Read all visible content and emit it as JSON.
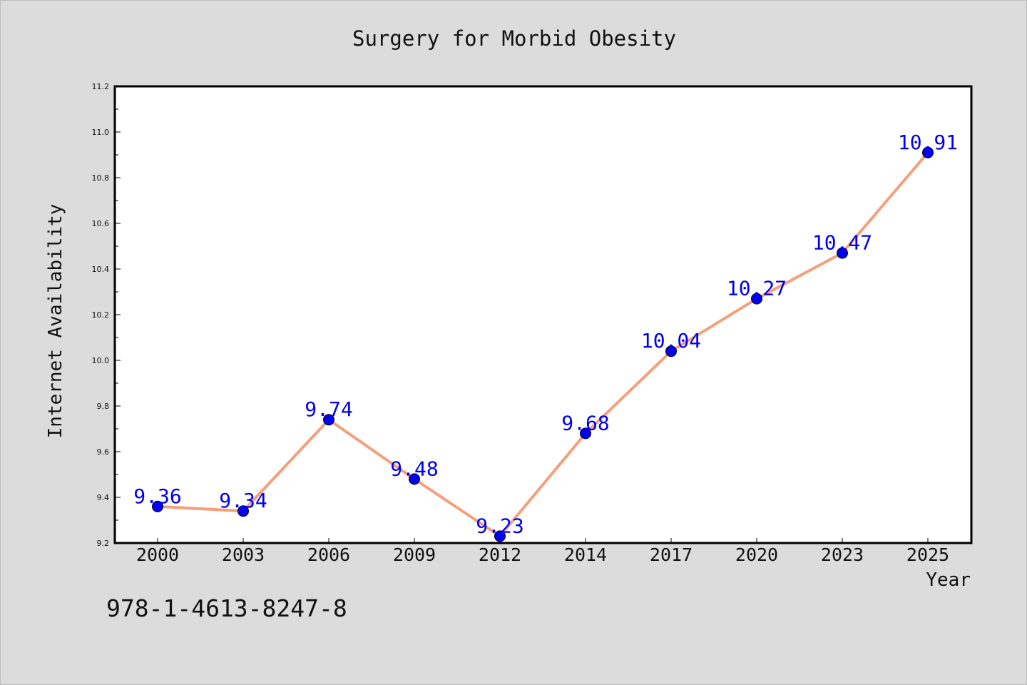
{
  "chart_data": {
    "type": "line",
    "title": "Surgery for Morbid Obesity",
    "xlabel": "Year",
    "ylabel": "Internet Availability",
    "categories": [
      "2000",
      "2003",
      "2006",
      "2009",
      "2012",
      "2014",
      "2017",
      "2020",
      "2023",
      "2025"
    ],
    "series": [
      {
        "values": [
          9.36,
          9.34,
          9.74,
          9.48,
          9.23,
          9.68,
          10.04,
          10.27,
          10.47,
          10.91
        ],
        "line_color": "#f4a07c",
        "marker_color": "#0000ee"
      }
    ],
    "data_labels": [
      "9.36",
      "9.34",
      "9.74",
      "9.48",
      "9.23",
      "9.68",
      "10.04",
      "10.27",
      "10.47",
      "10.91"
    ],
    "yticks": [
      "9.2",
      "9.4",
      "9.6",
      "9.8",
      "10.0",
      "10.2",
      "10.4",
      "10.6",
      "10.8",
      "11.0",
      "11.2"
    ],
    "ylim": [
      9.2,
      11.2
    ],
    "grid": false,
    "legend": "none",
    "label_color": "#0000ee",
    "background_color": "#dcdcdc",
    "plot_background_color": "#ffffff"
  },
  "footer": {
    "isbn": "978-1-4613-8247-8"
  }
}
